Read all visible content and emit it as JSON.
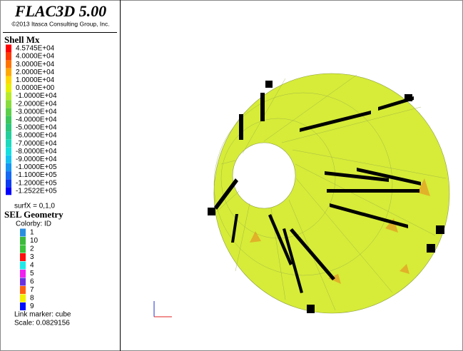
{
  "title": "FLAC3D 5.00",
  "copyright": "©2013 Itasca Consulting Group, Inc.",
  "contour": {
    "heading": "Shell Mx",
    "items": [
      {
        "label": "4.5745E+04",
        "color": "#ff0000"
      },
      {
        "label": "4.0000E+04",
        "color": "#ff3a00"
      },
      {
        "label": "3.0000E+04",
        "color": "#ff7400"
      },
      {
        "label": "2.0000E+04",
        "color": "#ffa800"
      },
      {
        "label": "1.0000E+04",
        "color": "#ffd800"
      },
      {
        "label": "0.0000E+00",
        "color": "#e6f000"
      },
      {
        "label": "-1.0000E+04",
        "color": "#b8ea2a"
      },
      {
        "label": "-2.0000E+04",
        "color": "#88dc3c"
      },
      {
        "label": "-3.0000E+04",
        "color": "#5ccf48"
      },
      {
        "label": "-4.0000E+04",
        "color": "#3cc65c"
      },
      {
        "label": "-5.0000E+04",
        "color": "#2cc67c"
      },
      {
        "label": "-6.0000E+04",
        "color": "#22cf9c"
      },
      {
        "label": "-7.0000E+04",
        "color": "#1ad9bd"
      },
      {
        "label": "-8.0000E+04",
        "color": "#14dfdf"
      },
      {
        "label": "-9.0000E+04",
        "color": "#14c2f2"
      },
      {
        "label": "-1.0000E+05",
        "color": "#1496f2"
      },
      {
        "label": "-1.1000E+05",
        "color": "#146af2"
      },
      {
        "label": "-1.2000E+05",
        "color": "#0a3cf2"
      },
      {
        "label": "-1.2522E+05",
        "color": "#0000ff"
      }
    ],
    "note": "surfX = 0,1,0"
  },
  "geometry": {
    "heading": "SEL Geometry",
    "colorby": "Colorby: ID",
    "items": [
      {
        "label": "1",
        "color": "#2a8ee0"
      },
      {
        "label": "10",
        "color": "#3cba3c"
      },
      {
        "label": "2",
        "color": "#3cc23c"
      },
      {
        "label": "3",
        "color": "#ff1010"
      },
      {
        "label": "4",
        "color": "#20e8e8"
      },
      {
        "label": "5",
        "color": "#f020f0"
      },
      {
        "label": "6",
        "color": "#6a30e0"
      },
      {
        "label": "7",
        "color": "#ff6010"
      },
      {
        "label": "8",
        "color": "#f0f000"
      },
      {
        "label": "9",
        "color": "#0010ff"
      }
    ],
    "marker": "Link marker: cube",
    "scale": "Scale: 0.0829156"
  }
}
